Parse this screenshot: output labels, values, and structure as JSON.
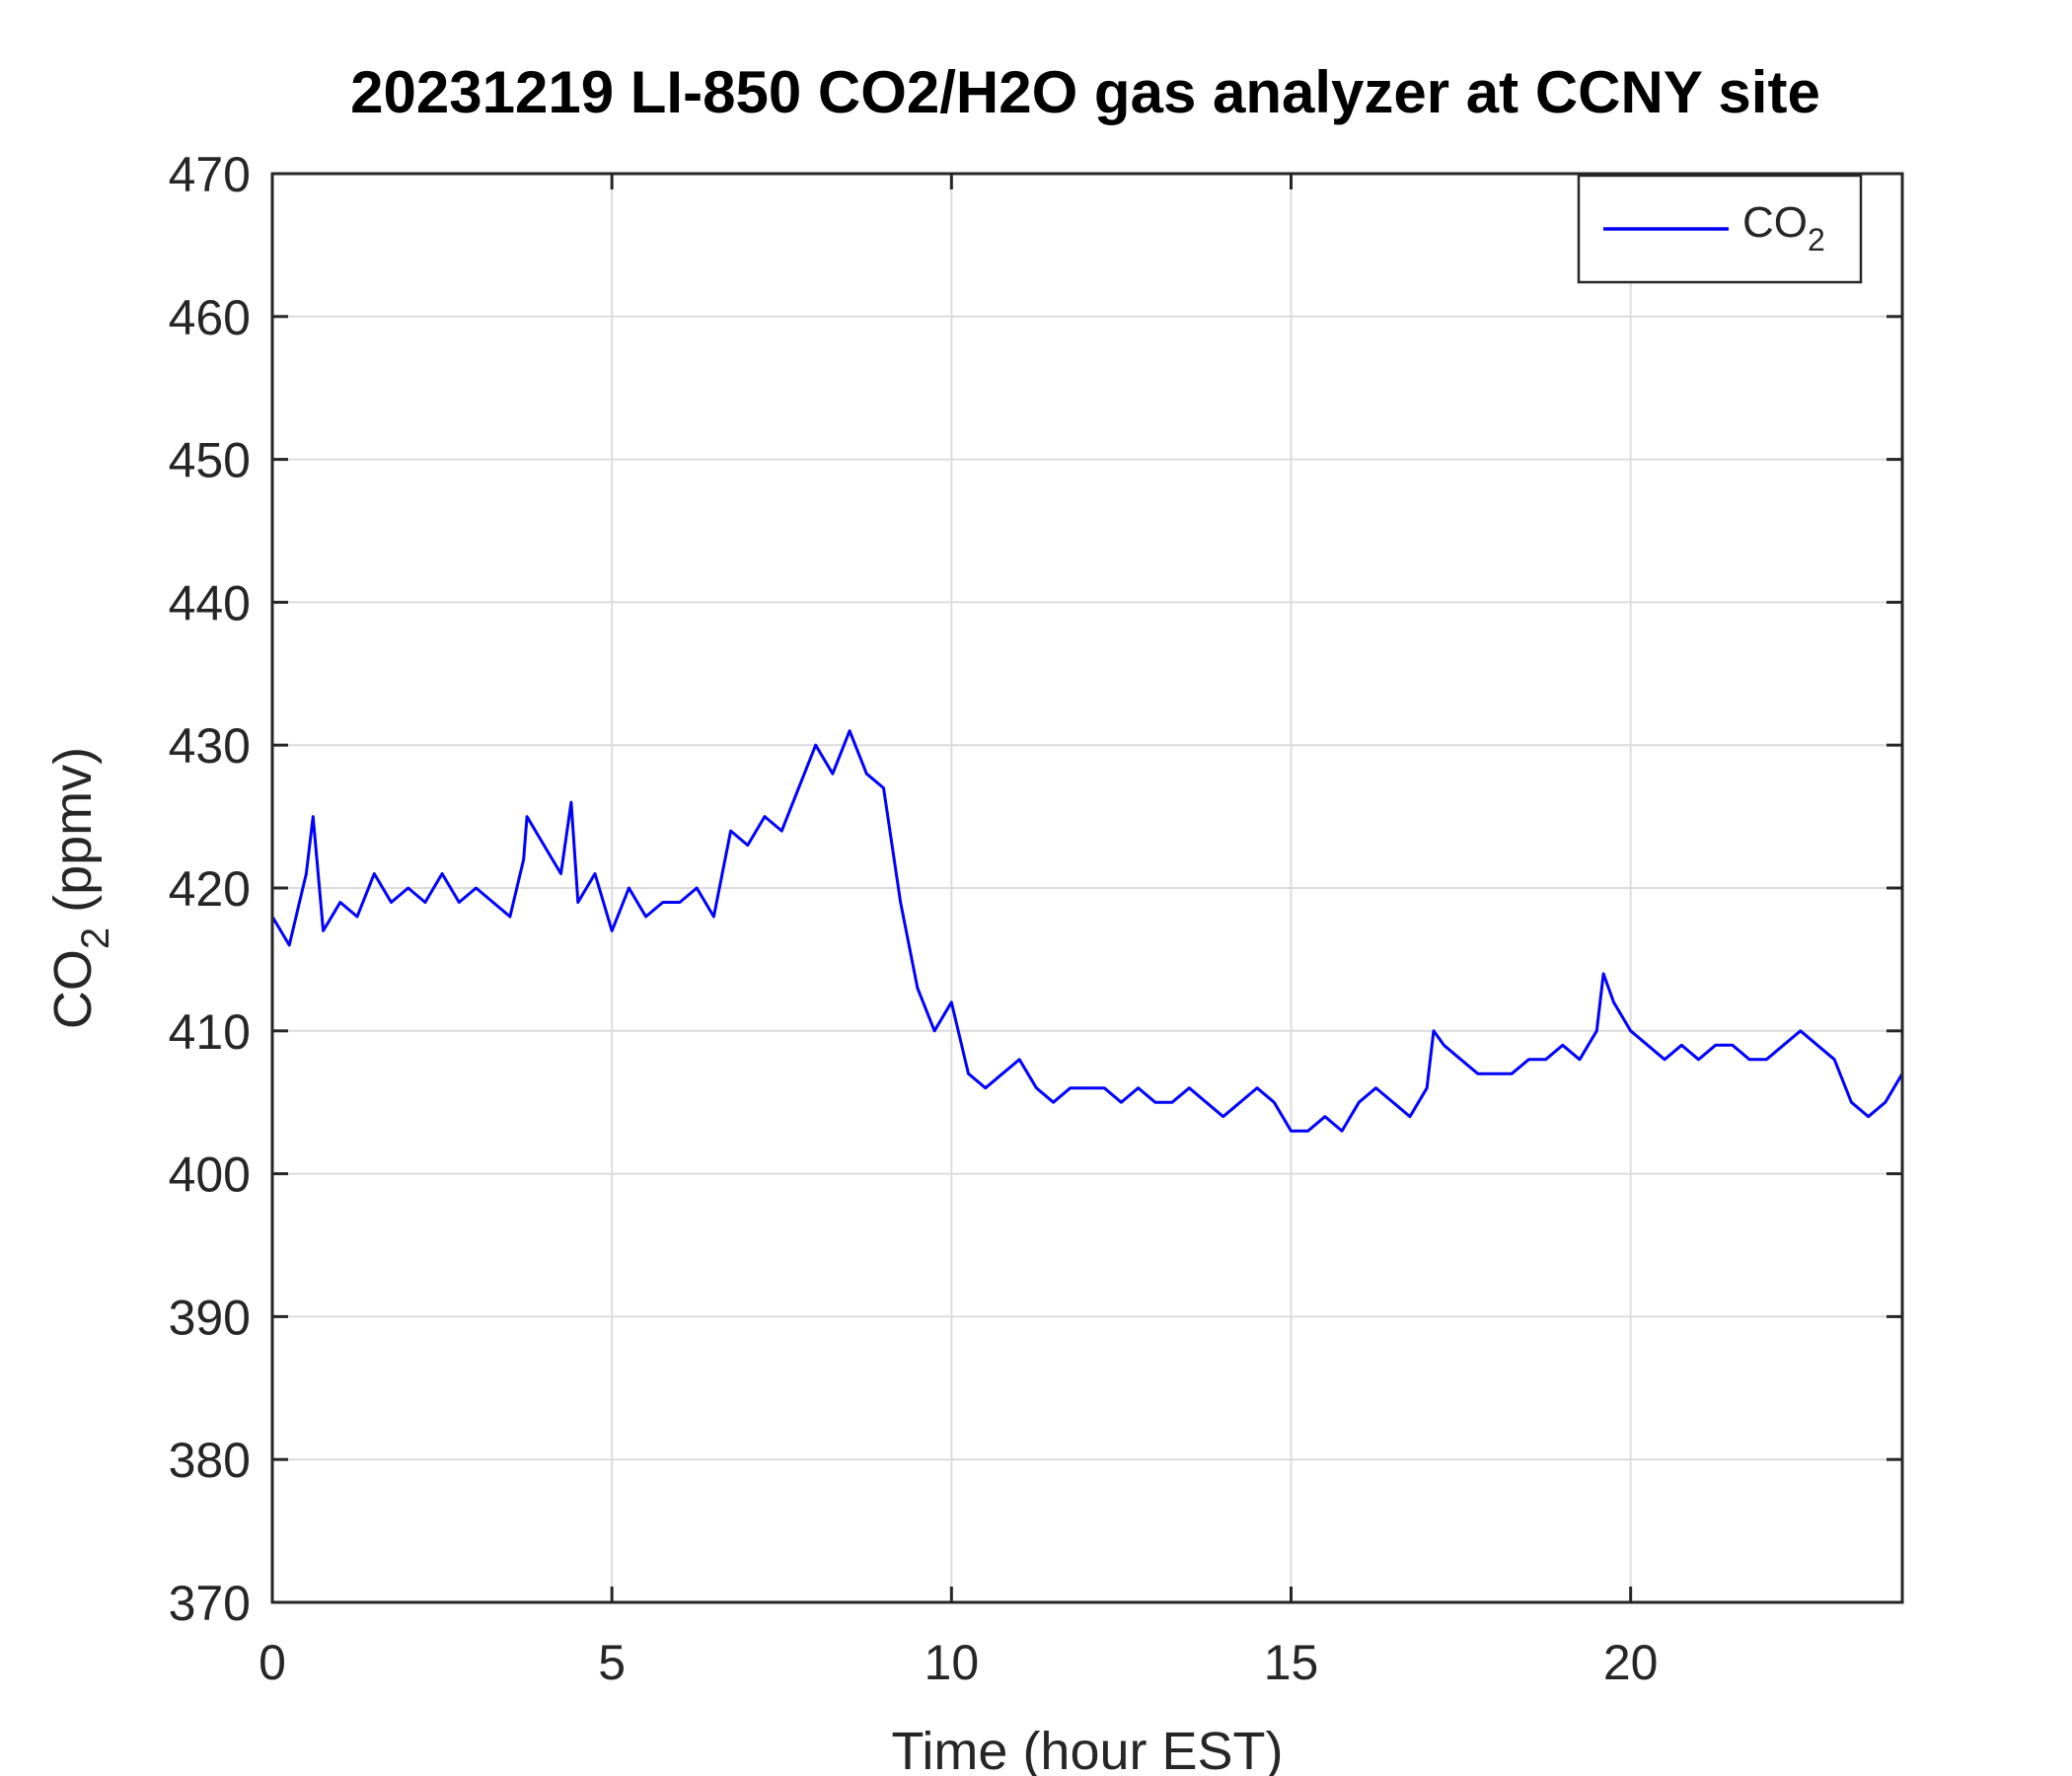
{
  "chart_data": {
    "type": "line",
    "title": "20231219 LI-850 CO2/H2O gas analyzer at CCNY site",
    "xlabel": "Time (hour EST)",
    "ylabel": {
      "main": "CO",
      "sub": "2",
      "rest": " (ppmv)"
    },
    "xlim": [
      0,
      24
    ],
    "ylim": [
      370,
      470
    ],
    "xticks": [
      0,
      5,
      10,
      15,
      20
    ],
    "yticks": [
      370,
      380,
      390,
      400,
      410,
      420,
      430,
      440,
      450,
      460,
      470
    ],
    "grid": true,
    "legend_position": "top-right",
    "series": [
      {
        "name": {
          "main": "CO",
          "sub": "2"
        },
        "color": "#0000ff",
        "x": [
          0,
          0.25,
          0.5,
          0.6,
          0.75,
          1,
          1.25,
          1.5,
          1.75,
          2,
          2.25,
          2.5,
          2.75,
          3,
          3.25,
          3.5,
          3.7,
          3.75,
          4,
          4.25,
          4.4,
          4.5,
          4.75,
          5,
          5.25,
          5.5,
          5.75,
          6,
          6.25,
          6.5,
          6.75,
          7,
          7.25,
          7.5,
          7.75,
          8,
          8.25,
          8.5,
          8.75,
          9,
          9.25,
          9.5,
          9.75,
          10,
          10.25,
          10.5,
          10.75,
          11,
          11.25,
          11.5,
          11.75,
          12,
          12.25,
          12.5,
          12.75,
          13,
          13.25,
          13.5,
          13.75,
          14,
          14.25,
          14.5,
          14.75,
          15,
          15.25,
          15.5,
          15.75,
          16,
          16.25,
          16.5,
          16.75,
          17,
          17.1,
          17.25,
          17.5,
          17.75,
          18,
          18.25,
          18.5,
          18.75,
          19,
          19.25,
          19.5,
          19.6,
          19.75,
          20,
          20.25,
          20.5,
          20.75,
          21,
          21.25,
          21.5,
          21.75,
          22,
          22.25,
          22.5,
          22.75,
          23,
          23.25,
          23.5,
          23.75,
          24
        ],
        "y": [
          418,
          416,
          421,
          425,
          417,
          419,
          418,
          421,
          419,
          420,
          419,
          421,
          419,
          420,
          419,
          418,
          422,
          425,
          423,
          421,
          426,
          419,
          421,
          417,
          420,
          418,
          419,
          419,
          420,
          418,
          424,
          423,
          425,
          424,
          427,
          430,
          428,
          431,
          428,
          427,
          419,
          413,
          410,
          412,
          407,
          406,
          407,
          408,
          406,
          405,
          406,
          406,
          406,
          405,
          406,
          405,
          405,
          406,
          405,
          404,
          405,
          406,
          405,
          403,
          403,
          404,
          403,
          405,
          406,
          405,
          404,
          406,
          410,
          409,
          408,
          407,
          407,
          407,
          408,
          408,
          409,
          408,
          410,
          414,
          412,
          410,
          409,
          408,
          409,
          408,
          409,
          409,
          408,
          408,
          409,
          410,
          409,
          408,
          405,
          404,
          405,
          407
        ]
      }
    ]
  }
}
